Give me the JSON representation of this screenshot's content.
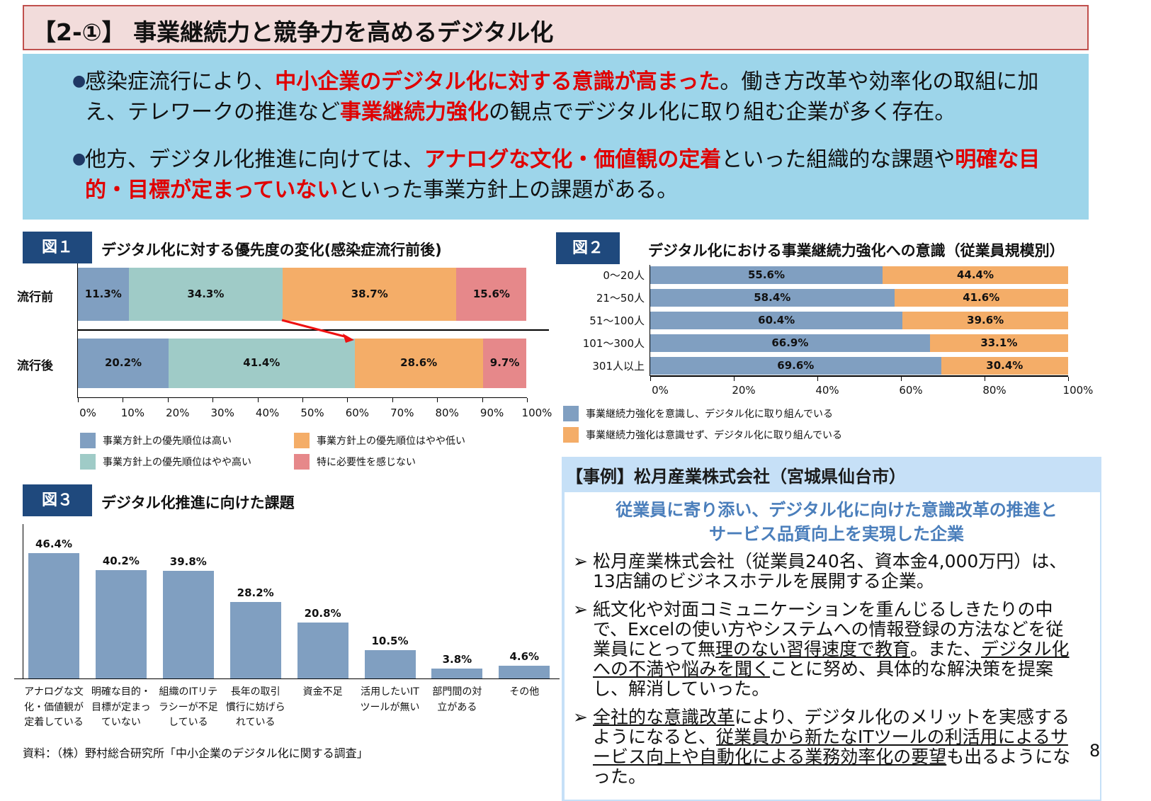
{
  "title": "【2-①】 事業継続力と競争力を高めるデジタル化",
  "summary": {
    "bullets": [
      [
        {
          "t": "感染症流行により、"
        },
        {
          "t": "中小企業のデジタル化に対する意識が高まった",
          "hl": true
        },
        {
          "t": "。働き方改革や効率化の取組に加え、テレワークの推進など"
        },
        {
          "t": "事業継続力強化",
          "hl": true
        },
        {
          "t": "の観点でデジタル化に取り組む企業が多く存在。"
        }
      ],
      [
        {
          "t": "他方、デジタル化推進に向けては、"
        },
        {
          "t": "アナログな文化・価値観の定着",
          "hl": true
        },
        {
          "t": "といった組織的な課題や"
        },
        {
          "t": "明確な目的・目標が定まっていない",
          "hl": true
        },
        {
          "t": "といった事業方針上の課題がある。"
        }
      ]
    ],
    "bullet_icon": "filled-circle"
  },
  "fig1": {
    "label": "図１",
    "title": "デジタル化に対する優先度の変化(感染症流行前後)",
    "colors": [
      "#809fc1",
      "#9fcbc7",
      "#f4ad68",
      "#e6888a"
    ],
    "legend": [
      "事業方針上の優先順位は高い",
      "事業方針上の優先順位はやや高い",
      "事業方針上の優先順位はやや低い",
      "特に必要性を感じない"
    ],
    "ticks": [
      "0%",
      "10%",
      "20%",
      "30%",
      "40%",
      "50%",
      "60%",
      "70%",
      "80%",
      "90%",
      "100%"
    ]
  },
  "fig2": {
    "label": "図２",
    "title": "デジタル化における事業継続力強化への意識（従業員規模別）",
    "colors": [
      "#809fc1",
      "#f4ad68"
    ],
    "legend": [
      "事業継続力強化を意識し、デジタル化に取り組んでいる",
      "事業継続力強化は意識せず、デジタル化に取り組んでいる"
    ],
    "ticks": [
      "0%",
      "20%",
      "40%",
      "60%",
      "80%",
      "100%"
    ]
  },
  "fig3": {
    "label": "図３",
    "title": "デジタル化推進に向けた課題",
    "color": "#809fc1"
  },
  "chart_data": [
    {
      "type": "bar",
      "orientation": "horizontal-stacked",
      "categories": [
        "流行前",
        "流行後"
      ],
      "series": [
        {
          "name": "事業方針上の優先順位は高い",
          "values": [
            11.3,
            20.2
          ],
          "labels": [
            "11.3%",
            "20.2%"
          ]
        },
        {
          "name": "事業方針上の優先順位はやや高い",
          "values": [
            34.3,
            41.4
          ],
          "labels": [
            "34.3%",
            "41.4%"
          ]
        },
        {
          "name": "事業方針上の優先順位はやや低い",
          "values": [
            38.7,
            28.6
          ],
          "labels": [
            "38.7%",
            "28.6%"
          ]
        },
        {
          "name": "特に必要性を感じない",
          "values": [
            15.6,
            9.7
          ],
          "labels": [
            "15.6%",
            "9.7%"
          ]
        }
      ],
      "xlim": [
        0,
        100
      ],
      "legend": "bottom"
    },
    {
      "type": "bar",
      "orientation": "horizontal-stacked",
      "categories": [
        "0～20人",
        "21～50人",
        "51～100人",
        "101～300人",
        "301人以上"
      ],
      "series": [
        {
          "name": "事業継続力強化を意識し、デジタル化に取り組んでいる",
          "values": [
            55.6,
            58.4,
            60.4,
            66.9,
            69.6
          ],
          "labels": [
            "55.6%",
            "58.4%",
            "60.4%",
            "66.9%",
            "69.6%"
          ]
        },
        {
          "name": "事業継続力強化は意識せず、デジタル化に取り組んでいる",
          "values": [
            44.4,
            41.6,
            39.6,
            33.1,
            30.4
          ],
          "labels": [
            "44.4%",
            "41.6%",
            "39.6%",
            "33.1%",
            "30.4%"
          ]
        }
      ],
      "xlim": [
        0,
        100
      ],
      "legend": "bottom"
    },
    {
      "type": "bar",
      "categories": [
        [
          "アナログな文",
          "化・価値観が",
          "定着している"
        ],
        [
          "明確な目的・",
          "目標が定まっ",
          "ていない"
        ],
        [
          "組織のITリテ",
          "ラシーが不足",
          "している"
        ],
        [
          "長年の取引",
          "慣行に妨げら",
          "れている"
        ],
        [
          "資金不足"
        ],
        [
          "活用したいIT",
          "ツールが無い"
        ],
        [
          "部門間の対",
          "立がある"
        ],
        [
          "その他"
        ]
      ],
      "values": [
        46.4,
        40.2,
        39.8,
        28.2,
        20.8,
        10.5,
        3.8,
        4.6
      ],
      "labels": [
        "46.4%",
        "40.2%",
        "39.8%",
        "28.2%",
        "20.8%",
        "10.5%",
        "3.8%",
        "4.6%"
      ]
    }
  ],
  "source": "資料：（株）野村総合研究所「中小企業のデジタル化に関する調査」",
  "case": {
    "header": "【事例】松月産業株式会社（宮城県仙台市）",
    "subtitle": [
      "従業員に寄り添い、デジタル化に向けた意識改革の推進と",
      "サービス品質向上を実現した企業"
    ],
    "bullet_icon": "arrowhead",
    "bullet_glyph": "➢",
    "bullets": [
      [
        {
          "t": "松月産業株式会社（従業員240名、資本金4,000万円）は、13店舗のビジネスホテルを展開する企業。"
        }
      ],
      [
        {
          "t": "紙文化や対面コミュニケーションを重んじるしきたりの中で、Excelの使い方やシステムへの情報登録の方法などを従業員にとって無"
        },
        {
          "t": "理のない習得速度で教育",
          "u": true
        },
        {
          "t": "。また、"
        },
        {
          "t": "デジタル化への不満や悩みを聞く",
          "u": true
        },
        {
          "t": "ことに努め、具体的な解決策を提案し、解消していった。"
        }
      ],
      [
        {
          "t": "全社的な意識改革",
          "u": true
        },
        {
          "t": "により、デジタル化のメリットを実感するようになると、"
        },
        {
          "t": "従業員から新たなITツールの利活用によるサービス向上や自動化による業務効率化の要望",
          "u": true
        },
        {
          "t": "も出るようになった。"
        }
      ]
    ]
  },
  "page_number": "8"
}
